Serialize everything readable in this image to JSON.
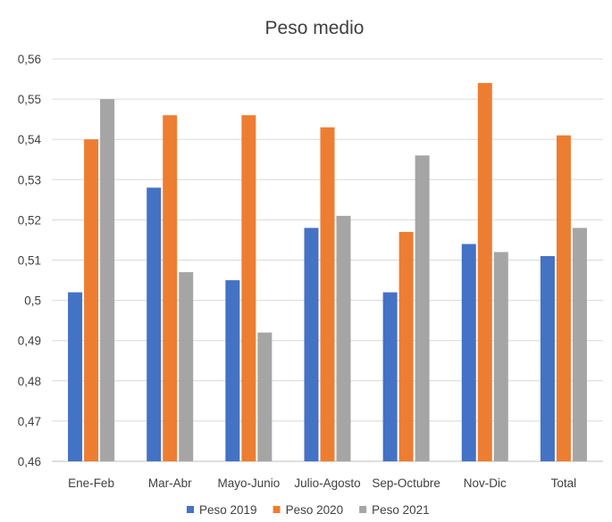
{
  "chart_data": {
    "type": "bar",
    "title": "Peso medio",
    "xlabel": "",
    "ylabel": "",
    "categories": [
      "Ene-Feb",
      "Mar-Abr",
      "Mayo-Junio",
      "Julio-Agosto",
      "Sep-Octubre",
      "Nov-Dic",
      "Total"
    ],
    "series": [
      {
        "name": "Peso 2019",
        "color": "#4472c4",
        "values": [
          0.502,
          0.528,
          0.505,
          0.518,
          0.502,
          0.514,
          0.511
        ]
      },
      {
        "name": "Peso 2020",
        "color": "#ed7d31",
        "values": [
          0.54,
          0.546,
          0.546,
          0.543,
          0.517,
          0.554,
          0.541
        ]
      },
      {
        "name": "Peso 2021",
        "color": "#a5a5a5",
        "values": [
          0.55,
          0.507,
          0.492,
          0.521,
          0.536,
          0.512,
          0.518
        ]
      }
    ],
    "ylim": [
      0.46,
      0.56
    ],
    "yticks": [
      0.46,
      0.47,
      0.48,
      0.49,
      0.5,
      0.51,
      0.52,
      0.53,
      0.54,
      0.55,
      0.56
    ],
    "ytick_labels": [
      "0,46",
      "0,47",
      "0,48",
      "0,49",
      "0,5",
      "0,51",
      "0,52",
      "0,53",
      "0,54",
      "0,55",
      "0,56"
    ],
    "grid": true,
    "legend_position": "bottom"
  }
}
